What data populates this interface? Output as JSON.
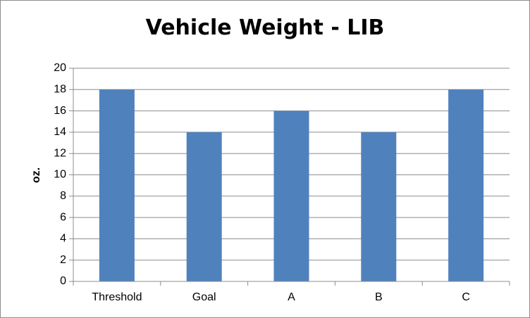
{
  "chart_data": {
    "type": "bar",
    "title": "Vehicle Weight - LIB",
    "xlabel": "",
    "ylabel": "oz.",
    "categories": [
      "Threshold",
      "Goal",
      "A",
      "B",
      "C"
    ],
    "values": [
      18,
      14,
      16,
      14,
      18
    ],
    "ylim": [
      0,
      20
    ],
    "yticks": [
      "0",
      "2",
      "4",
      "6",
      "8",
      "10",
      "12",
      "14",
      "16",
      "18",
      "20"
    ],
    "grid": true,
    "legend": "none",
    "bar_color": "#4f81bd"
  }
}
